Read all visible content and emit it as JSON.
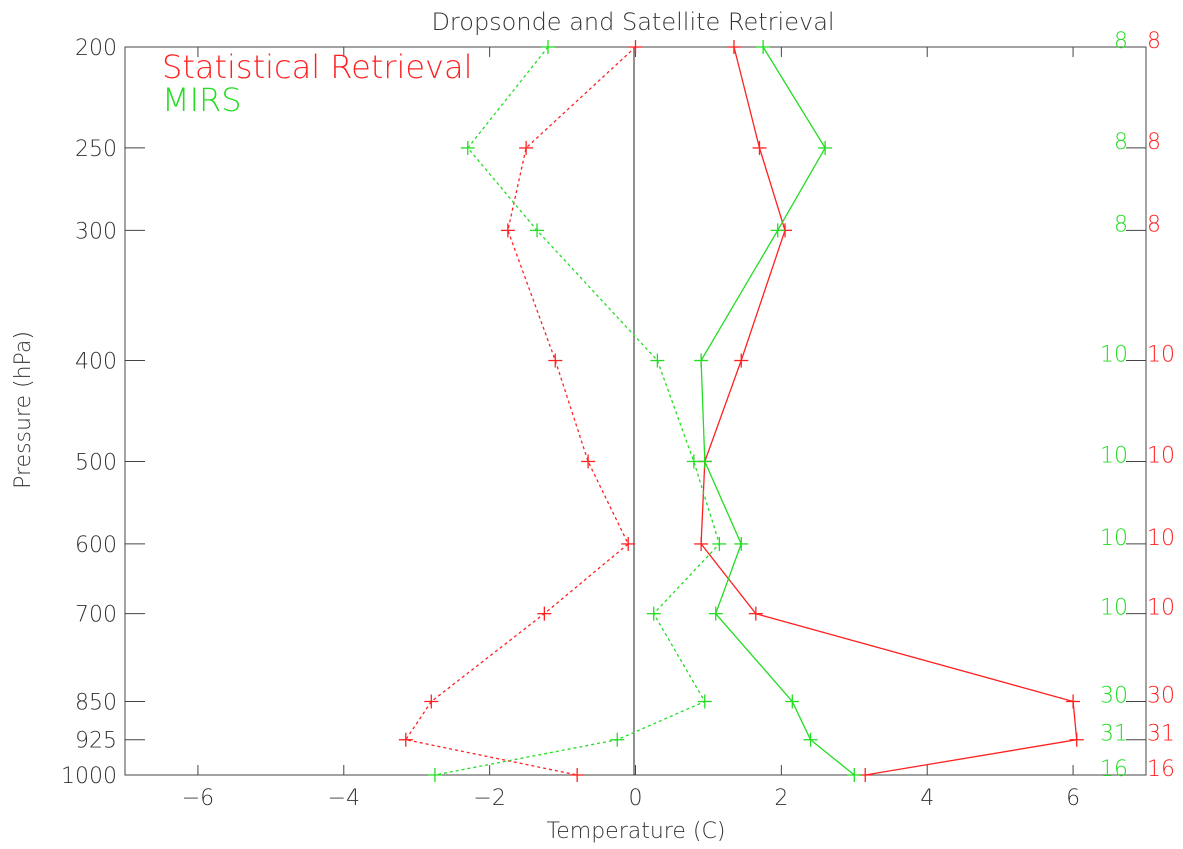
{
  "chart_data": {
    "type": "line",
    "title": "Dropsonde and Satellite Retrieval",
    "xlabel": "Temperature (C)",
    "ylabel": "Pressure (hPa)",
    "xlim": [
      -7,
      7
    ],
    "ylim": [
      1000,
      200
    ],
    "y_scale": "log",
    "x_ticks": [
      -6,
      -4,
      -2,
      0,
      2,
      4,
      6
    ],
    "y_ticks": [
      200,
      250,
      300,
      400,
      500,
      600,
      700,
      850,
      925,
      1000
    ],
    "pressure_levels": [
      200,
      250,
      300,
      400,
      500,
      600,
      700,
      850,
      925,
      1000
    ],
    "legend": {
      "placement": "top-left",
      "entries": [
        {
          "label": "Statistical Retrieval",
          "color": "#ff2020"
        },
        {
          "label": "MIRS",
          "color": "#22dd22"
        }
      ]
    },
    "series": [
      {
        "id": "stat_bias",
        "color": "#ff2020",
        "style": "dotted",
        "values": [
          0.0,
          -1.5,
          -1.75,
          -1.1,
          -0.65,
          -0.1,
          -1.25,
          -2.8,
          -3.15,
          -0.8
        ]
      },
      {
        "id": "stat_rmse",
        "color": "#ff2020",
        "style": "solid",
        "values": [
          1.35,
          1.7,
          2.05,
          1.45,
          0.95,
          0.9,
          1.65,
          6.0,
          6.05,
          3.15
        ]
      },
      {
        "id": "mirs_bias",
        "color": "#22dd22",
        "style": "dotted",
        "values": [
          -1.2,
          -2.3,
          -1.35,
          0.3,
          0.8,
          1.15,
          0.25,
          0.95,
          -0.25,
          -2.75
        ]
      },
      {
        "id": "mirs_rmse",
        "color": "#22dd22",
        "style": "solid",
        "values": [
          1.75,
          2.6,
          1.95,
          0.9,
          0.95,
          1.45,
          1.1,
          2.15,
          2.4,
          3.0
        ]
      }
    ],
    "sample_counts": {
      "mirs": [
        "8",
        "8",
        "8",
        "10",
        "10",
        "10",
        "10",
        "30",
        "31",
        "16"
      ],
      "statistical": [
        "8",
        "8",
        "8",
        "10",
        "10",
        "10",
        "10",
        "30",
        "31",
        "16"
      ]
    }
  }
}
